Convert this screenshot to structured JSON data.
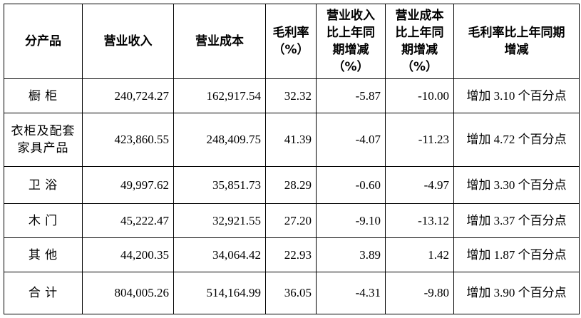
{
  "table": {
    "header": [
      [
        "分产品"
      ],
      [
        "营业收入"
      ],
      [
        "营业成本"
      ],
      [
        "毛利率",
        "（%）"
      ],
      [
        "营业收入",
        "比上年同",
        "期增减",
        "（%）"
      ],
      [
        "营业成本",
        "比上年同",
        "期增减",
        "（%）"
      ],
      [
        "毛利率比上年同期",
        "增减"
      ]
    ],
    "rows": [
      [
        [
          "橱 柜"
        ],
        "240,724.27",
        "162,917.54",
        "32.32",
        "-5.87",
        "-10.00",
        "增加 3.10 个百分点"
      ],
      [
        [
          "衣柜及配套",
          "家具产品"
        ],
        "423,860.55",
        "248,409.75",
        "41.39",
        "-4.07",
        "-11.23",
        "增加 4.72 个百分点"
      ],
      [
        [
          "卫 浴"
        ],
        "49,997.62",
        "35,851.73",
        "28.29",
        "-0.60",
        "-4.97",
        "增加 3.30 个百分点"
      ],
      [
        [
          "木 门"
        ],
        "45,222.47",
        "32,921.55",
        "27.20",
        "-9.10",
        "-13.12",
        "增加 3.37 个百分点"
      ],
      [
        [
          "其 他"
        ],
        "44,200.35",
        "34,064.42",
        "22.93",
        "3.89",
        "1.42",
        "增加 1.87 个百分点"
      ],
      [
        [
          "合 计"
        ],
        "804,005.26",
        "514,164.99",
        "36.05",
        "-4.31",
        "-9.80",
        "增加 3.90 个百分点"
      ]
    ]
  }
}
